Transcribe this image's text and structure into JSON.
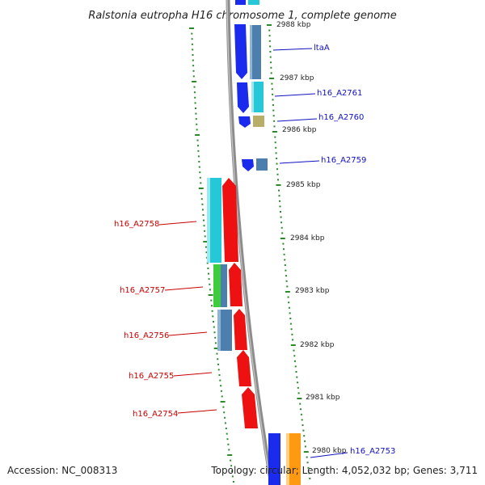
{
  "title": "Ralstonia eutropha H16 chromosome 1, complete genome",
  "footer": {
    "accession": "Accession: NC_008313",
    "topology": "Topology: circular; Length: 4,052,032 bp; Genes: 3,711"
  },
  "scale_ticks": [
    "2988 kbp",
    "2987 kbp",
    "2986 kbp",
    "2985 kbp",
    "2984 kbp",
    "2983 kbp",
    "2982 kbp",
    "2981 kbp",
    "2980 kbp"
  ],
  "gene_labels": {
    "ltaA": "ltaA",
    "h16_A2761": "h16_A2761",
    "h16_A2760": "h16_A2760",
    "h16_A2759": "h16_A2759",
    "h16_A2758": "h16_A2758",
    "h16_A2757": "h16_A2757",
    "h16_A2756": "h16_A2756",
    "h16_A2755": "h16_A2755",
    "h16_A2754": "h16_A2754",
    "h16_A2753": "h16_A2753"
  },
  "colors": {
    "backbone": "#8c8c8c",
    "tick_green": "#2a8a2a",
    "reverse_label": "#c80000",
    "forward_label": "#1010c0",
    "gene_red": "#ee1111",
    "gene_blue": "#1a2bee",
    "gene_cyan": "#26c8d8",
    "gene_steel": "#4d7fae",
    "gene_green": "#3ccc3c",
    "gene_olive": "#b8ae68",
    "gene_orange": "#ff9a10"
  }
}
